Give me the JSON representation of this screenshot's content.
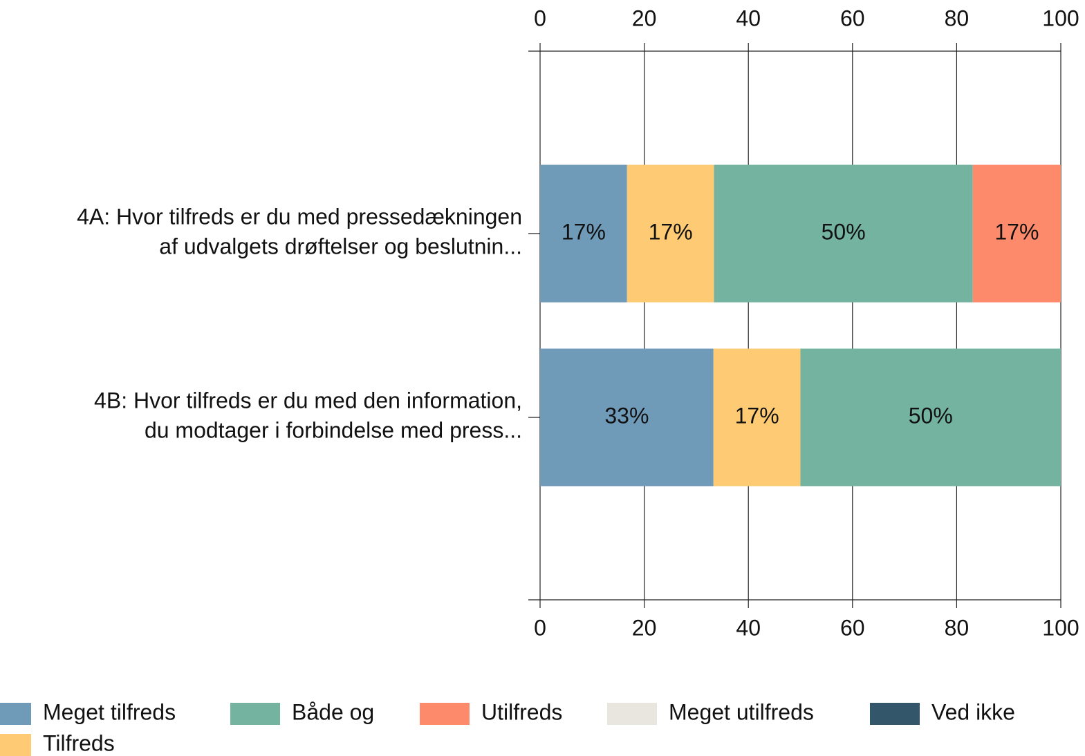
{
  "chart_data": {
    "type": "stacked_barh",
    "categories": [
      [
        "4A: Hvor tilfreds er du med pressedækningen",
        "af udvalgets drøftelser og beslutnin..."
      ],
      [
        "4B: Hvor tilfreds er du med den information,",
        "du modtager i forbindelse med press..."
      ]
    ],
    "series": [
      {
        "name": "Meget tilfreds",
        "color": "#6f9ab8",
        "values": [
          16.7,
          33.3
        ],
        "value_labels": [
          "17%",
          "33%"
        ]
      },
      {
        "name": "Tilfreds",
        "color": "#fecb74",
        "values": [
          16.7,
          16.7
        ],
        "value_labels": [
          "17%",
          "17%"
        ]
      },
      {
        "name": "Både og",
        "color": "#74b39f",
        "values": [
          49.7,
          50
        ],
        "value_labels": [
          "50%",
          "50%"
        ]
      },
      {
        "name": "Utilfreds",
        "color": "#fd8a6b",
        "values": [
          16.9,
          null
        ],
        "value_labels": [
          "17%",
          null
        ]
      },
      {
        "name": "Meget utilfreds",
        "color": "#e8e6df",
        "values": [
          null,
          null
        ],
        "value_labels": [
          null,
          null
        ]
      },
      {
        "name": "Ved ikke",
        "color": "#33566b",
        "values": [
          null,
          null
        ],
        "value_labels": [
          null,
          null
        ]
      }
    ],
    "xlim": [
      0,
      100
    ],
    "xticks": [
      0,
      20,
      40,
      60,
      80,
      100
    ],
    "grid": true,
    "legend": "bottom"
  }
}
